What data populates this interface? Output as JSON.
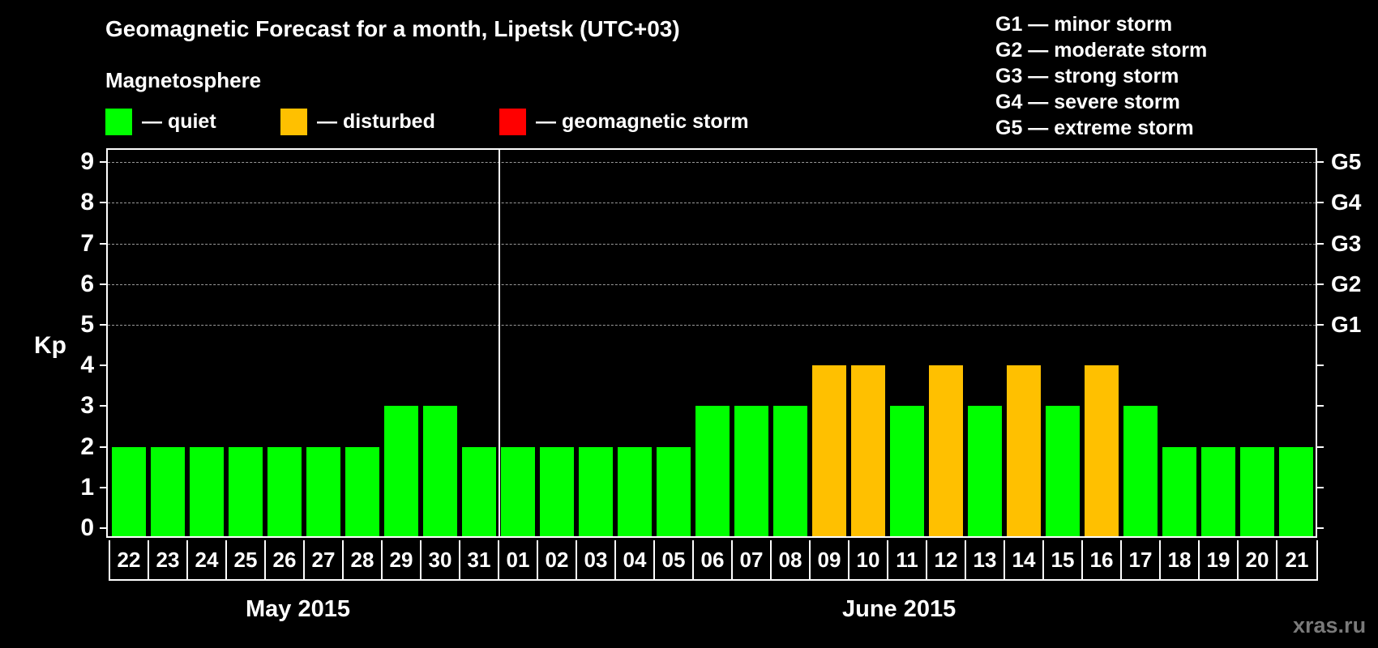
{
  "header": {
    "title": "Geomagnetic Forecast for a month, Lipetsk (UTC+03)",
    "subtitle": "Magnetosphere"
  },
  "legend": {
    "items": [
      {
        "label": "— quiet",
        "color": "#00ff00"
      },
      {
        "label": "— disturbed",
        "color": "#ffc000"
      },
      {
        "label": "— geomagnetic storm",
        "color": "#ff0000"
      }
    ]
  },
  "g_scale": {
    "items": [
      "G1 — minor storm",
      "G2 — moderate storm",
      "G3 — strong storm",
      "G4 — severe storm",
      "G5 — extreme storm"
    ]
  },
  "axes": {
    "ylabel": "Kp",
    "yticks": [
      "0",
      "1",
      "2",
      "3",
      "4",
      "5",
      "6",
      "7",
      "8",
      "9"
    ],
    "right_ticks": [
      {
        "kp": 5,
        "label": "G1"
      },
      {
        "kp": 6,
        "label": "G2"
      },
      {
        "kp": 7,
        "label": "G3"
      },
      {
        "kp": 8,
        "label": "G4"
      },
      {
        "kp": 9,
        "label": "G5"
      }
    ],
    "months": [
      {
        "label": "May 2015"
      },
      {
        "label": "June 2015"
      }
    ]
  },
  "watermark": "xras.ru",
  "colors": {
    "quiet": "#00ff00",
    "disturbed": "#ffc000",
    "storm": "#ff0000",
    "background": "#000000",
    "grid": "#9a9a9a"
  },
  "chart_data": {
    "type": "bar",
    "title": "Geomagnetic Forecast for a month, Lipetsk (UTC+03)",
    "subtitle": "Magnetosphere",
    "xlabel": "",
    "ylabel": "Kp",
    "ylim": [
      0,
      9
    ],
    "grid": "dashed horizontal at Kp 5-9",
    "legend_position": "top",
    "categories": [
      "22",
      "23",
      "24",
      "25",
      "26",
      "27",
      "28",
      "29",
      "30",
      "31",
      "01",
      "02",
      "03",
      "04",
      "05",
      "06",
      "07",
      "08",
      "09",
      "10",
      "11",
      "12",
      "13",
      "14",
      "15",
      "16",
      "17",
      "18",
      "19",
      "20",
      "21"
    ],
    "month_groups": [
      {
        "label": "May 2015",
        "days": [
          "22",
          "23",
          "24",
          "25",
          "26",
          "27",
          "28",
          "29",
          "30",
          "31"
        ]
      },
      {
        "label": "June 2015",
        "days": [
          "01",
          "02",
          "03",
          "04",
          "05",
          "06",
          "07",
          "08",
          "09",
          "10",
          "11",
          "12",
          "13",
          "14",
          "15",
          "16",
          "17",
          "18",
          "19",
          "20",
          "21"
        ]
      }
    ],
    "values": [
      2,
      2,
      2,
      2,
      2,
      2,
      2,
      3,
      3,
      2,
      2,
      2,
      2,
      2,
      2,
      3,
      3,
      3,
      4,
      4,
      3,
      4,
      3,
      4,
      3,
      4,
      3,
      2,
      2,
      2,
      2
    ],
    "status": [
      "quiet",
      "quiet",
      "quiet",
      "quiet",
      "quiet",
      "quiet",
      "quiet",
      "quiet",
      "quiet",
      "quiet",
      "quiet",
      "quiet",
      "quiet",
      "quiet",
      "quiet",
      "quiet",
      "quiet",
      "quiet",
      "disturbed",
      "disturbed",
      "quiet",
      "disturbed",
      "quiet",
      "disturbed",
      "quiet",
      "disturbed",
      "quiet",
      "quiet",
      "quiet",
      "quiet",
      "quiet"
    ],
    "right_axis": {
      "5": "G1",
      "6": "G2",
      "7": "G3",
      "8": "G4",
      "9": "G5"
    }
  }
}
